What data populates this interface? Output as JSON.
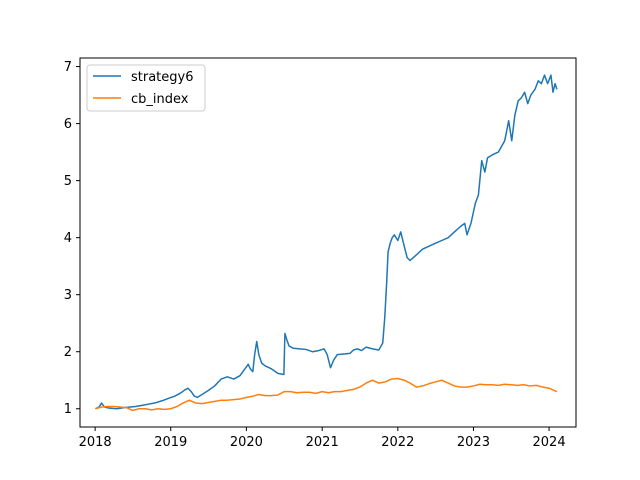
{
  "chart_data": {
    "type": "line",
    "title": "",
    "xlabel": "",
    "ylabel": "",
    "xlim": [
      "2017-10-20",
      "2024-05-10"
    ],
    "ylim": [
      0.68,
      7.15
    ],
    "x_ticks": [
      "2018",
      "2019",
      "2020",
      "2021",
      "2022",
      "2023",
      "2024"
    ],
    "y_ticks": [
      1,
      2,
      3,
      4,
      5,
      6,
      7
    ],
    "grid": false,
    "legend": "upper-left",
    "series": [
      {
        "name": "strategy6",
        "color": "#1f77b4",
        "points": [
          [
            "2018-01-02",
            1.0
          ],
          [
            "2018-01-20",
            1.03
          ],
          [
            "2018-02-01",
            1.1
          ],
          [
            "2018-02-15",
            1.03
          ],
          [
            "2018-03-10",
            1.01
          ],
          [
            "2018-04-15",
            1.0
          ],
          [
            "2018-05-20",
            1.02
          ],
          [
            "2018-06-20",
            1.03
          ],
          [
            "2018-07-15",
            1.04
          ],
          [
            "2018-08-15",
            1.06
          ],
          [
            "2018-09-15",
            1.08
          ],
          [
            "2018-10-15",
            1.1
          ],
          [
            "2018-11-20",
            1.14
          ],
          [
            "2018-12-20",
            1.18
          ],
          [
            "2019-01-20",
            1.22
          ],
          [
            "2019-02-15",
            1.27
          ],
          [
            "2019-03-10",
            1.33
          ],
          [
            "2019-03-25",
            1.36
          ],
          [
            "2019-04-10",
            1.3
          ],
          [
            "2019-04-25",
            1.22
          ],
          [
            "2019-05-10",
            1.2
          ],
          [
            "2019-06-01",
            1.25
          ],
          [
            "2019-07-01",
            1.32
          ],
          [
            "2019-08-01",
            1.4
          ],
          [
            "2019-09-01",
            1.52
          ],
          [
            "2019-10-01",
            1.56
          ],
          [
            "2019-11-01",
            1.52
          ],
          [
            "2019-12-01",
            1.58
          ],
          [
            "2020-01-10",
            1.78
          ],
          [
            "2020-01-20",
            1.7
          ],
          [
            "2020-02-01",
            1.65
          ],
          [
            "2020-02-10",
            1.95
          ],
          [
            "2020-02-20",
            2.18
          ],
          [
            "2020-03-01",
            1.95
          ],
          [
            "2020-03-15",
            1.8
          ],
          [
            "2020-04-01",
            1.75
          ],
          [
            "2020-05-01",
            1.7
          ],
          [
            "2020-06-01",
            1.62
          ],
          [
            "2020-06-30",
            1.6
          ],
          [
            "2020-07-05",
            2.32
          ],
          [
            "2020-07-15",
            2.2
          ],
          [
            "2020-07-25",
            2.1
          ],
          [
            "2020-08-15",
            2.06
          ],
          [
            "2020-09-15",
            2.05
          ],
          [
            "2020-10-15",
            2.04
          ],
          [
            "2020-11-15",
            2.0
          ],
          [
            "2020-12-15",
            2.02
          ],
          [
            "2021-01-10",
            2.05
          ],
          [
            "2021-01-25",
            1.95
          ],
          [
            "2021-02-10",
            1.72
          ],
          [
            "2021-02-25",
            1.85
          ],
          [
            "2021-03-15",
            1.95
          ],
          [
            "2021-04-15",
            1.96
          ],
          [
            "2021-05-15",
            1.97
          ],
          [
            "2021-06-01",
            2.03
          ],
          [
            "2021-06-20",
            2.05
          ],
          [
            "2021-07-10",
            2.02
          ],
          [
            "2021-08-01",
            2.08
          ],
          [
            "2021-09-01",
            2.05
          ],
          [
            "2021-10-01",
            2.03
          ],
          [
            "2021-10-20",
            2.15
          ],
          [
            "2021-10-30",
            2.6
          ],
          [
            "2021-11-08",
            3.2
          ],
          [
            "2021-11-15",
            3.75
          ],
          [
            "2021-11-25",
            3.9
          ],
          [
            "2021-12-05",
            4.0
          ],
          [
            "2021-12-15",
            4.05
          ],
          [
            "2022-01-01",
            3.95
          ],
          [
            "2022-01-15",
            4.1
          ],
          [
            "2022-02-01",
            3.85
          ],
          [
            "2022-02-15",
            3.65
          ],
          [
            "2022-03-01",
            3.6
          ],
          [
            "2022-04-01",
            3.7
          ],
          [
            "2022-05-01",
            3.8
          ],
          [
            "2022-06-01",
            3.85
          ],
          [
            "2022-07-01",
            3.9
          ],
          [
            "2022-08-01",
            3.95
          ],
          [
            "2022-09-01",
            4.0
          ],
          [
            "2022-10-01",
            4.1
          ],
          [
            "2022-11-01",
            4.2
          ],
          [
            "2022-11-20",
            4.25
          ],
          [
            "2022-12-01",
            4.05
          ],
          [
            "2022-12-20",
            4.25
          ],
          [
            "2023-01-10",
            4.6
          ],
          [
            "2023-01-25",
            4.75
          ],
          [
            "2023-02-10",
            5.35
          ],
          [
            "2023-02-25",
            5.15
          ],
          [
            "2023-03-10",
            5.4
          ],
          [
            "2023-04-01",
            5.45
          ],
          [
            "2023-05-01",
            5.5
          ],
          [
            "2023-06-01",
            5.7
          ],
          [
            "2023-06-20",
            6.05
          ],
          [
            "2023-07-05",
            5.7
          ],
          [
            "2023-07-20",
            6.15
          ],
          [
            "2023-08-05",
            6.4
          ],
          [
            "2023-08-20",
            6.45
          ],
          [
            "2023-09-05",
            6.55
          ],
          [
            "2023-09-20",
            6.35
          ],
          [
            "2023-10-05",
            6.5
          ],
          [
            "2023-10-25",
            6.6
          ],
          [
            "2023-11-10",
            6.75
          ],
          [
            "2023-11-25",
            6.7
          ],
          [
            "2023-12-10",
            6.85
          ],
          [
            "2023-12-25",
            6.7
          ],
          [
            "2024-01-10",
            6.85
          ],
          [
            "2024-01-20",
            6.55
          ],
          [
            "2024-01-30",
            6.7
          ],
          [
            "2024-02-08",
            6.6
          ]
        ]
      },
      {
        "name": "cb_index",
        "color": "#ff7f0e",
        "points": [
          [
            "2018-01-02",
            1.0
          ],
          [
            "2018-02-01",
            1.03
          ],
          [
            "2018-03-01",
            1.04
          ],
          [
            "2018-04-01",
            1.04
          ],
          [
            "2018-05-01",
            1.03
          ],
          [
            "2018-06-01",
            1.02
          ],
          [
            "2018-07-01",
            0.97
          ],
          [
            "2018-08-01",
            1.0
          ],
          [
            "2018-09-01",
            1.0
          ],
          [
            "2018-10-01",
            0.98
          ],
          [
            "2018-11-01",
            1.0
          ],
          [
            "2018-12-01",
            0.99
          ],
          [
            "2019-01-01",
            1.0
          ],
          [
            "2019-02-01",
            1.04
          ],
          [
            "2019-03-01",
            1.1
          ],
          [
            "2019-04-01",
            1.15
          ],
          [
            "2019-05-01",
            1.1
          ],
          [
            "2019-06-01",
            1.09
          ],
          [
            "2019-07-01",
            1.11
          ],
          [
            "2019-08-01",
            1.13
          ],
          [
            "2019-09-01",
            1.15
          ],
          [
            "2019-10-01",
            1.15
          ],
          [
            "2019-11-01",
            1.16
          ],
          [
            "2019-12-01",
            1.17
          ],
          [
            "2020-01-01",
            1.2
          ],
          [
            "2020-02-01",
            1.22
          ],
          [
            "2020-03-01",
            1.25
          ],
          [
            "2020-04-01",
            1.23
          ],
          [
            "2020-05-01",
            1.23
          ],
          [
            "2020-06-01",
            1.24
          ],
          [
            "2020-07-01",
            1.3
          ],
          [
            "2020-08-01",
            1.3
          ],
          [
            "2020-09-01",
            1.28
          ],
          [
            "2020-10-01",
            1.29
          ],
          [
            "2020-11-01",
            1.29
          ],
          [
            "2020-12-01",
            1.27
          ],
          [
            "2021-01-01",
            1.3
          ],
          [
            "2021-02-01",
            1.28
          ],
          [
            "2021-03-01",
            1.3
          ],
          [
            "2021-04-01",
            1.3
          ],
          [
            "2021-05-01",
            1.32
          ],
          [
            "2021-06-01",
            1.34
          ],
          [
            "2021-07-01",
            1.38
          ],
          [
            "2021-08-01",
            1.45
          ],
          [
            "2021-09-01",
            1.5
          ],
          [
            "2021-10-01",
            1.45
          ],
          [
            "2021-11-01",
            1.47
          ],
          [
            "2021-12-01",
            1.52
          ],
          [
            "2022-01-01",
            1.53
          ],
          [
            "2022-02-01",
            1.5
          ],
          [
            "2022-03-01",
            1.45
          ],
          [
            "2022-04-01",
            1.38
          ],
          [
            "2022-05-01",
            1.4
          ],
          [
            "2022-06-01",
            1.44
          ],
          [
            "2022-07-01",
            1.47
          ],
          [
            "2022-08-01",
            1.5
          ],
          [
            "2022-09-01",
            1.45
          ],
          [
            "2022-10-01",
            1.4
          ],
          [
            "2022-11-01",
            1.38
          ],
          [
            "2022-12-01",
            1.38
          ],
          [
            "2023-01-01",
            1.4
          ],
          [
            "2023-02-01",
            1.43
          ],
          [
            "2023-03-01",
            1.42
          ],
          [
            "2023-04-01",
            1.42
          ],
          [
            "2023-05-01",
            1.41
          ],
          [
            "2023-06-01",
            1.43
          ],
          [
            "2023-07-01",
            1.42
          ],
          [
            "2023-08-01",
            1.41
          ],
          [
            "2023-09-01",
            1.42
          ],
          [
            "2023-10-01",
            1.4
          ],
          [
            "2023-11-01",
            1.41
          ],
          [
            "2023-12-01",
            1.38
          ],
          [
            "2024-01-01",
            1.36
          ],
          [
            "2024-01-20",
            1.33
          ],
          [
            "2024-02-08",
            1.3
          ]
        ]
      }
    ]
  }
}
